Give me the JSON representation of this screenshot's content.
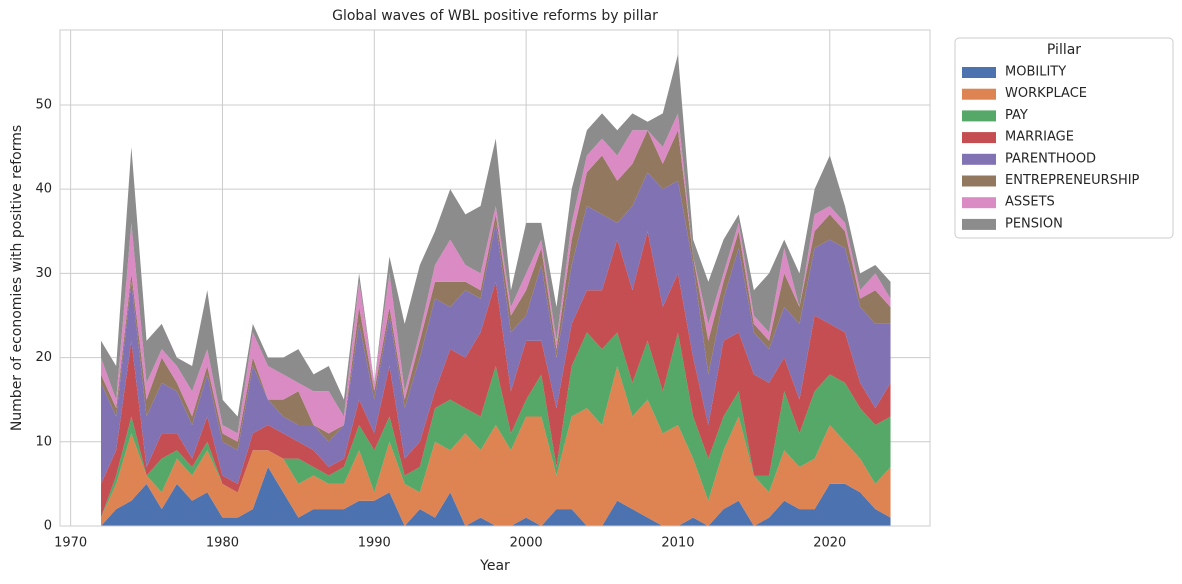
{
  "chart_data": {
    "type": "stacked_area",
    "title": "Global waves of WBL positive reforms by pillar",
    "x_label": "Year",
    "y_label": "Number of economies with positive reforms",
    "legend_title": "Pillar",
    "legend": "outside upper right",
    "grid": true,
    "x": [
      1972,
      1973,
      1974,
      1975,
      1976,
      1977,
      1978,
      1979,
      1980,
      1981,
      1982,
      1983,
      1984,
      1985,
      1986,
      1987,
      1988,
      1989,
      1990,
      1991,
      1992,
      1993,
      1994,
      1995,
      1996,
      1997,
      1998,
      1999,
      2000,
      2001,
      2002,
      2003,
      2004,
      2005,
      2006,
      2007,
      2008,
      2009,
      2010,
      2011,
      2012,
      2013,
      2014,
      2015,
      2016,
      2017,
      2018,
      2019,
      2020,
      2021,
      2022,
      2023,
      2024
    ],
    "xlim": [
      1969.3,
      2026.6
    ],
    "xticks": [
      1970,
      1980,
      1990,
      2000,
      2010,
      2020
    ],
    "ylim": [
      0,
      58.9
    ],
    "yticks": [
      0,
      10,
      20,
      30,
      40,
      50
    ],
    "series": [
      {
        "name": "MOBILITY",
        "color": "#4c72b0",
        "values": [
          0,
          2,
          3,
          5,
          2,
          5,
          3,
          4,
          1,
          1,
          2,
          7,
          4,
          1,
          2,
          2,
          2,
          3,
          3,
          4,
          0,
          2,
          1,
          4,
          0,
          1,
          0,
          0,
          1,
          0,
          2,
          2,
          0,
          0,
          3,
          2,
          1,
          0,
          0,
          1,
          0,
          2,
          3,
          0,
          1,
          3,
          2,
          2,
          5,
          5,
          4,
          2,
          1
        ]
      },
      {
        "name": "WORKPLACE",
        "color": "#dd8452",
        "values": [
          1,
          3,
          8,
          1,
          2,
          3,
          3,
          5,
          4,
          3,
          7,
          2,
          4,
          4,
          4,
          3,
          3,
          6,
          1,
          6,
          5,
          2,
          9,
          5,
          11,
          8,
          12,
          9,
          12,
          13,
          4,
          11,
          14,
          12,
          16,
          11,
          14,
          11,
          12,
          7,
          3,
          7,
          10,
          6,
          3,
          6,
          5,
          6,
          7,
          5,
          4,
          3,
          6
        ]
      },
      {
        "name": "PAY",
        "color": "#55a868",
        "values": [
          0,
          1,
          2,
          0,
          4,
          1,
          1,
          1,
          0,
          0,
          0,
          0,
          0,
          3,
          1,
          1,
          2,
          3,
          5,
          3,
          1,
          3,
          4,
          6,
          3,
          4,
          7,
          2,
          2,
          5,
          1,
          6,
          9,
          9,
          4,
          4,
          7,
          5,
          11,
          5,
          5,
          4,
          3,
          0,
          2,
          7,
          4,
          8,
          6,
          7,
          6,
          7,
          6
        ]
      },
      {
        "name": "MARRIAGE",
        "color": "#c44e52",
        "values": [
          4,
          3,
          9,
          1,
          3,
          2,
          1,
          3,
          1,
          1,
          2,
          3,
          3,
          2,
          2,
          1,
          1,
          3,
          2,
          6,
          2,
          3,
          2,
          6,
          6,
          10,
          10,
          5,
          7,
          4,
          7,
          5,
          5,
          7,
          11,
          11,
          13,
          10,
          7,
          7,
          4,
          9,
          7,
          12,
          11,
          4,
          4,
          9,
          6,
          6,
          3,
          2,
          4
        ]
      },
      {
        "name": "PARENTHOOD",
        "color": "#8172b3",
        "values": [
          12,
          4,
          7,
          6,
          6,
          5,
          4,
          5,
          4,
          4,
          8,
          3,
          2,
          2,
          3,
          3,
          4,
          9,
          4,
          6,
          6,
          10,
          11,
          5,
          8,
          4,
          7,
          7,
          3,
          9,
          6,
          7,
          10,
          9,
          2,
          10,
          7,
          14,
          11,
          11,
          6,
          5,
          10,
          5,
          4,
          6,
          9,
          8,
          10,
          10,
          9,
          10,
          7
        ]
      },
      {
        "name": "ENTREPRENEURSHIP",
        "color": "#937860",
        "values": [
          1,
          1,
          1,
          2,
          3,
          1,
          1,
          1,
          1,
          1,
          1,
          0,
          2,
          4,
          0,
          1,
          0,
          2,
          1,
          1,
          1,
          2,
          2,
          3,
          1,
          1,
          1,
          2,
          3,
          2,
          1,
          3,
          4,
          7,
          5,
          5,
          5,
          3,
          6,
          1,
          4,
          2,
          2,
          1,
          1,
          4,
          2,
          2,
          3,
          2,
          1,
          4,
          2
        ]
      },
      {
        "name": "ASSETS",
        "color": "#da8bc3",
        "values": [
          2,
          1,
          6,
          2,
          1,
          2,
          3,
          2,
          1,
          1,
          3,
          4,
          3,
          1,
          4,
          5,
          1,
          3,
          1,
          4,
          1,
          1,
          2,
          5,
          2,
          2,
          1,
          1,
          2,
          1,
          1,
          2,
          2,
          2,
          3,
          4,
          0,
          2,
          2,
          0,
          2,
          1,
          1,
          1,
          1,
          3,
          0,
          2,
          1,
          1,
          1,
          2,
          1
        ]
      },
      {
        "name": "PENSION",
        "color": "#8c8c8c",
        "values": [
          2,
          4,
          9,
          5,
          3,
          1,
          3,
          7,
          3,
          2,
          1,
          1,
          2,
          4,
          2,
          3,
          2,
          1,
          0,
          2,
          8,
          8,
          4,
          6,
          6,
          8,
          8,
          2,
          6,
          2,
          4,
          4,
          3,
          3,
          3,
          2,
          1,
          4,
          7,
          2,
          5,
          4,
          1,
          3,
          7,
          1,
          4,
          3,
          6,
          2,
          2,
          1,
          2
        ]
      }
    ]
  }
}
